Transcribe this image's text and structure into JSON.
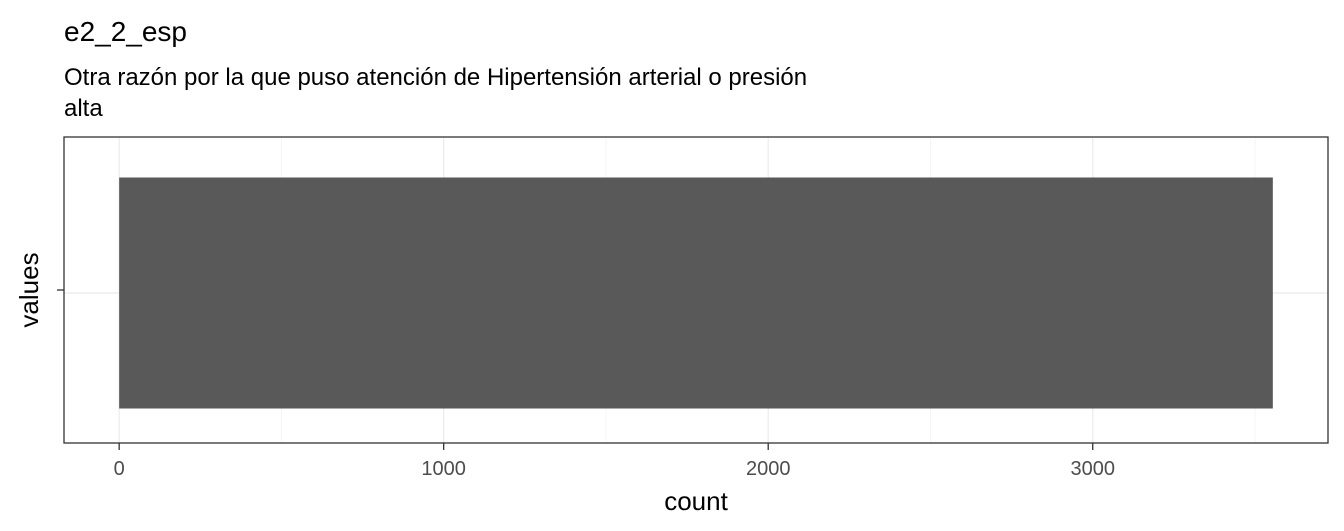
{
  "chart_data": {
    "type": "bar",
    "orientation": "horizontal",
    "title": "e2_2_esp",
    "subtitle_lines": [
      "Otra razón por la que puso atención de Hipertensión arterial o presión",
      "alta"
    ],
    "xlabel": "count",
    "ylabel": "values",
    "categories": [
      ""
    ],
    "values": [
      3555
    ],
    "xlim": [
      -170,
      3725
    ],
    "x_ticks": [
      0,
      1000,
      2000,
      3000
    ],
    "x_tick_labels": [
      "0",
      "1000",
      "2000",
      "3000"
    ],
    "x_minor_ticks": [
      500,
      1500,
      2500,
      3500
    ],
    "grid": true,
    "legend": "none",
    "colors": {
      "bar": "#595959",
      "panel_border": "#333333",
      "grid_major": "#ebebeb",
      "grid_minor": "#f5f5f5",
      "tick_label": "#4d4d4d"
    }
  }
}
